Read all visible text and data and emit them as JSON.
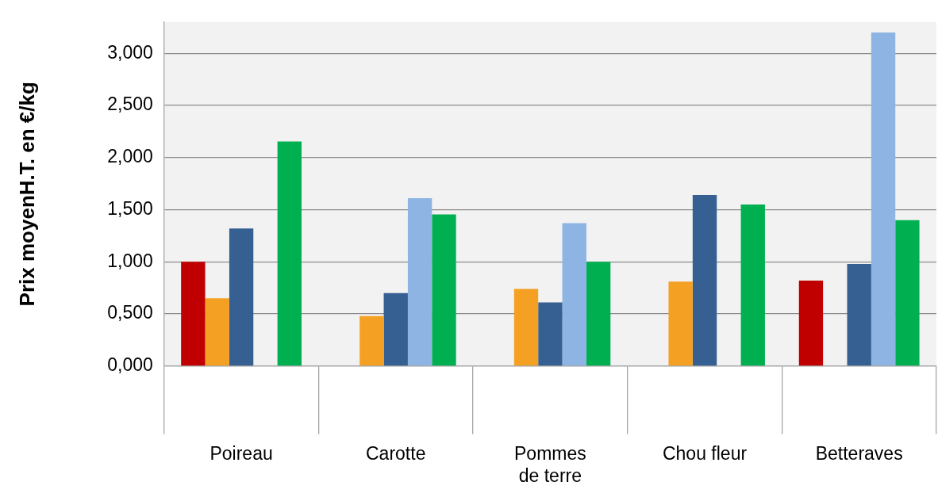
{
  "chart_data": {
    "type": "bar",
    "ylabel": "Prix moyenH.T. en €/kg",
    "categories": [
      "Poireau",
      "Carotte",
      "Pommes de terre",
      "Chou fleur",
      "Betteraves"
    ],
    "series": [
      {
        "color": "#c00000",
        "values": [
          1.0,
          null,
          null,
          null,
          0.82
        ]
      },
      {
        "color": "#f4a023",
        "values": [
          0.65,
          0.48,
          0.74,
          0.81,
          null
        ]
      },
      {
        "color": "#366092",
        "values": [
          1.32,
          0.7,
          0.61,
          1.64,
          0.98
        ]
      },
      {
        "color": "#8eb4e3",
        "values": [
          null,
          1.61,
          1.37,
          null,
          3.2
        ]
      },
      {
        "color": "#00b050",
        "values": [
          2.155,
          1.455,
          1.0,
          1.55,
          1.4
        ]
      }
    ],
    "ylim": [
      0,
      3.3
    ],
    "yticks": [
      {
        "value": 0,
        "label": "0,000"
      },
      {
        "value": 0.5,
        "label": "0,500"
      },
      {
        "value": 1,
        "label": "1,000"
      },
      {
        "value": 1.5,
        "label": "1,500"
      },
      {
        "value": 2,
        "label": "2,000"
      },
      {
        "value": 2.5,
        "label": "2,500"
      },
      {
        "value": 3,
        "label": "3,000"
      }
    ],
    "grid": "y",
    "legend": false
  }
}
